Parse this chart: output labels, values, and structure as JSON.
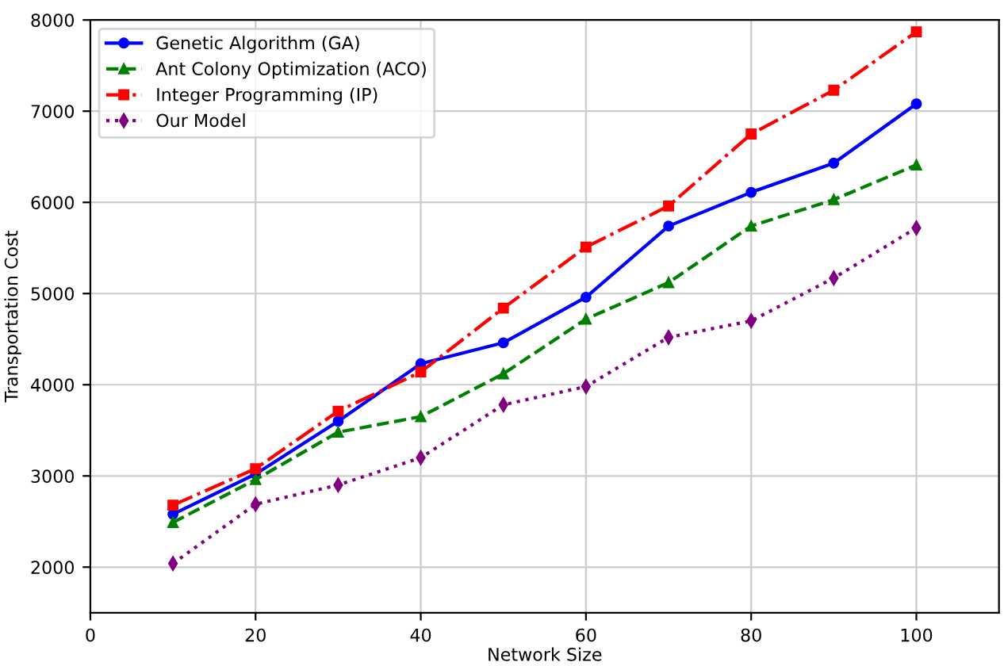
{
  "chart_data": {
    "type": "line",
    "xlabel": "Network Size",
    "ylabel": "Transportation Cost",
    "x": [
      10,
      20,
      30,
      40,
      50,
      60,
      70,
      80,
      90,
      100
    ],
    "series": [
      {
        "name": "Genetic Algorithm (GA)",
        "color": "#0000ff",
        "marker": "circle",
        "line_style": "solid",
        "values": [
          2580,
          3020,
          3600,
          4230,
          4460,
          4960,
          5740,
          6110,
          6430,
          7080
        ]
      },
      {
        "name": "Ant Colony Optimization (ACO)",
        "color": "#008000",
        "marker": "triangle",
        "line_style": "dashed",
        "values": [
          2490,
          2960,
          3480,
          3650,
          4120,
          4720,
          5120,
          5740,
          6030,
          6410
        ]
      },
      {
        "name": "Integer Programming (IP)",
        "color": "#ff0000",
        "marker": "square",
        "line_style": "dashdot",
        "values": [
          2680,
          3080,
          3710,
          4140,
          4840,
          5510,
          5960,
          6750,
          7230,
          7870
        ]
      },
      {
        "name": "Our Model",
        "color": "#800080",
        "marker": "diamond",
        "line_style": "dotted",
        "values": [
          2040,
          2690,
          2900,
          3200,
          3780,
          3980,
          4520,
          4700,
          5170,
          5720
        ]
      }
    ],
    "xlim": [
      0,
      110
    ],
    "xticks": [
      0,
      20,
      40,
      60,
      80,
      100
    ],
    "ylim": [
      1500,
      8000
    ],
    "yticks": [
      2000,
      3000,
      4000,
      5000,
      6000,
      7000,
      8000
    ],
    "grid": true,
    "legend": "top left"
  }
}
